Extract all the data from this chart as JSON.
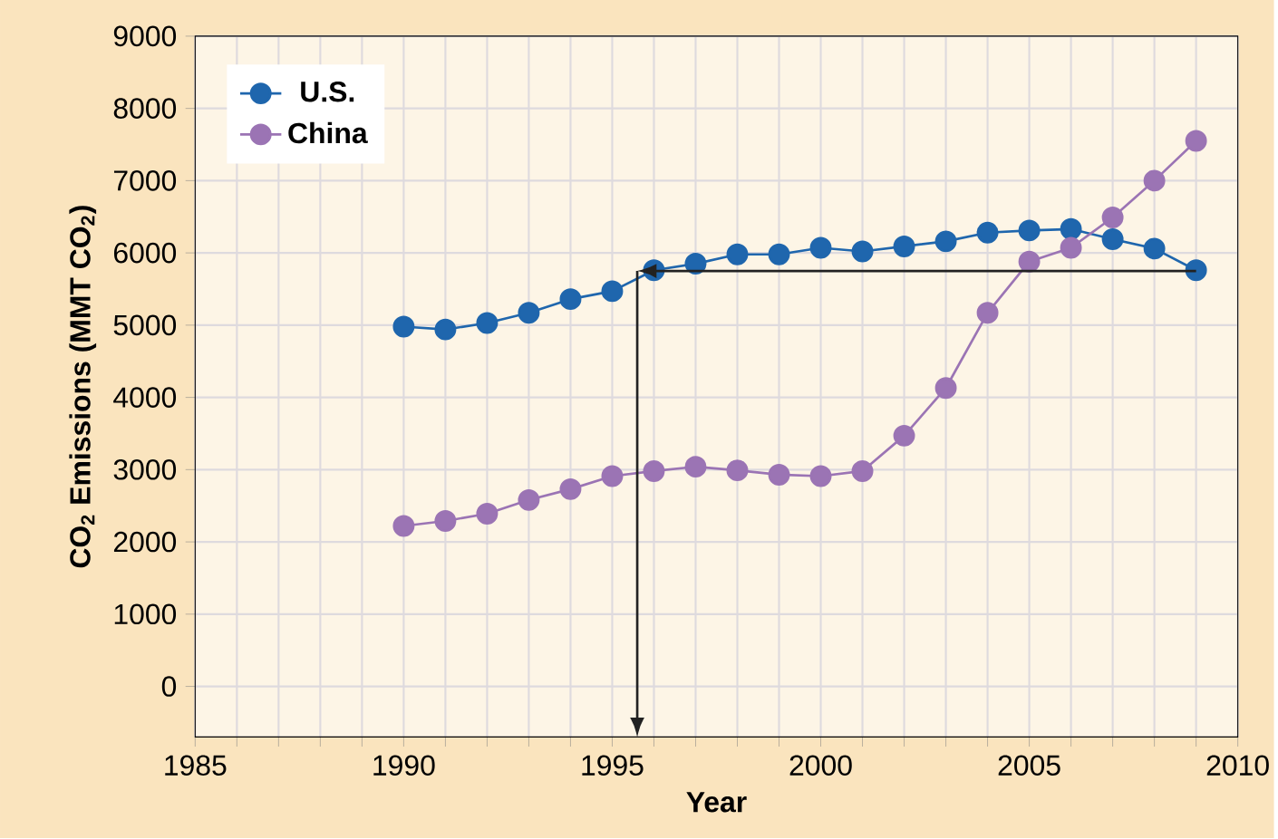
{
  "chart_data": {
    "type": "line",
    "xlabel": "Year",
    "ylabel": "CO$_{2}$ Emissions (MMT CO$_{2}$)",
    "x": [
      1990,
      1991,
      1992,
      1993,
      1994,
      1995,
      1996,
      1997,
      1998,
      1999,
      2000,
      2001,
      2002,
      2003,
      2004,
      2005,
      2006,
      2007,
      2008,
      2009
    ],
    "series": [
      {
        "name": "U.S.",
        "color": "#1f66ad",
        "values": [
          4980,
          4940,
          5030,
          5170,
          5360,
          5470,
          5760,
          5850,
          5980,
          5980,
          6070,
          6020,
          6090,
          6160,
          6280,
          6310,
          6330,
          6190,
          6060,
          5760
        ]
      },
      {
        "name": "China",
        "color": "#9b74b4",
        "values": [
          2220,
          2290,
          2390,
          2580,
          2730,
          2910,
          2980,
          3040,
          2990,
          2930,
          2910,
          2980,
          3470,
          4130,
          5170,
          5880,
          6070,
          6490,
          7000,
          7550
        ]
      }
    ],
    "xlim": [
      1985,
      2010
    ],
    "xticks": [
      1985,
      1990,
      1995,
      2000,
      2005,
      2010
    ],
    "ylim": [
      -700,
      9000
    ],
    "yticks": [
      0,
      1000,
      2000,
      3000,
      4000,
      5000,
      6000,
      7000,
      8000,
      9000
    ],
    "ref_lines": [
      {
        "axis": "y",
        "value": 5750,
        "color": "#222222"
      },
      {
        "axis": "x",
        "value": 1995.6,
        "color": "#222222"
      }
    ],
    "grid": true,
    "legend": "top left",
    "marker": "circle",
    "line_style": "solid"
  }
}
